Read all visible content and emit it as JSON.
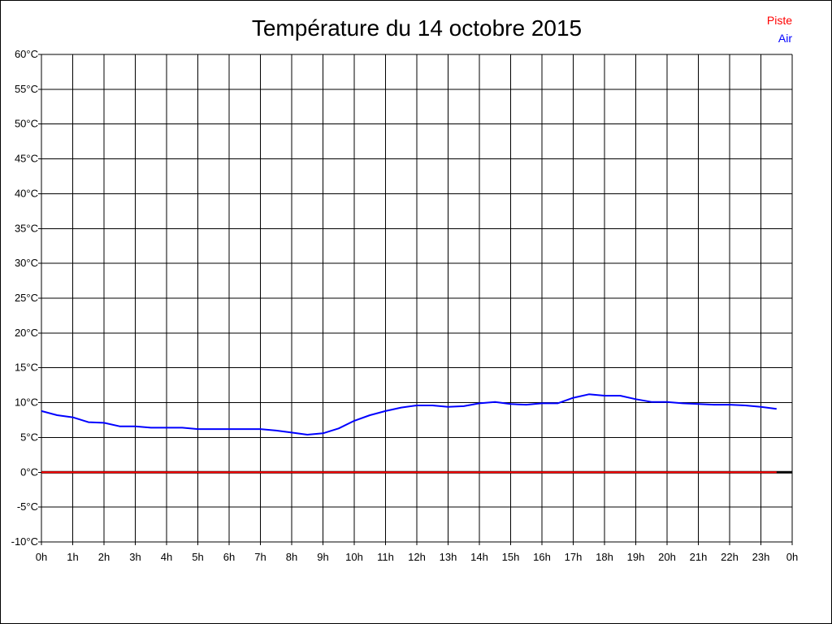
{
  "chart_data": {
    "type": "line",
    "title": "Température du 14 octobre 2015",
    "ylim": [
      -10,
      60
    ],
    "xlim": [
      0,
      24
    ],
    "grid": true,
    "legend_position": "top-right",
    "y_ticks": [
      "-10°C",
      "-5°C",
      "0°C",
      "5°C",
      "10°C",
      "15°C",
      "20°C",
      "25°C",
      "30°C",
      "35°C",
      "40°C",
      "45°C",
      "50°C",
      "55°C",
      "60°C"
    ],
    "y_tick_values": [
      -10,
      -5,
      0,
      5,
      10,
      15,
      20,
      25,
      30,
      35,
      40,
      45,
      50,
      55,
      60
    ],
    "x_ticks": [
      "0h",
      "1h",
      "2h",
      "3h",
      "4h",
      "5h",
      "6h",
      "7h",
      "8h",
      "9h",
      "10h",
      "11h",
      "12h",
      "13h",
      "14h",
      "15h",
      "16h",
      "17h",
      "18h",
      "19h",
      "20h",
      "21h",
      "22h",
      "23h",
      "0h"
    ],
    "series": [
      {
        "name": "Piste",
        "color": "#ff0000",
        "x": [
          0,
          23.5
        ],
        "y": [
          0,
          0
        ]
      },
      {
        "name": "Air",
        "color": "#0000ff",
        "x": [
          0,
          0.5,
          1,
          1.5,
          2,
          2.5,
          3,
          3.5,
          4,
          4.5,
          5,
          5.5,
          6,
          6.5,
          7,
          7.5,
          8,
          8.5,
          9,
          9.5,
          10,
          10.5,
          11,
          11.5,
          12,
          12.5,
          13,
          13.5,
          14,
          14.5,
          15,
          15.5,
          16,
          16.5,
          17,
          17.5,
          18,
          18.5,
          19,
          19.5,
          20,
          20.5,
          21,
          21.5,
          22,
          22.5,
          23,
          23.5
        ],
        "y": [
          8.8,
          8.2,
          7.9,
          7.2,
          7.1,
          6.6,
          6.6,
          6.4,
          6.4,
          6.4,
          6.2,
          6.2,
          6.2,
          6.2,
          6.2,
          6.0,
          5.7,
          5.4,
          5.6,
          6.3,
          7.4,
          8.2,
          8.8,
          9.3,
          9.6,
          9.6,
          9.4,
          9.5,
          9.9,
          10.1,
          9.8,
          9.7,
          9.9,
          9.9,
          10.7,
          11.2,
          11.0,
          11.0,
          10.5,
          10.1,
          10.1,
          9.9,
          9.8,
          9.7,
          9.7,
          9.6,
          9.4,
          9.1
        ]
      }
    ]
  }
}
